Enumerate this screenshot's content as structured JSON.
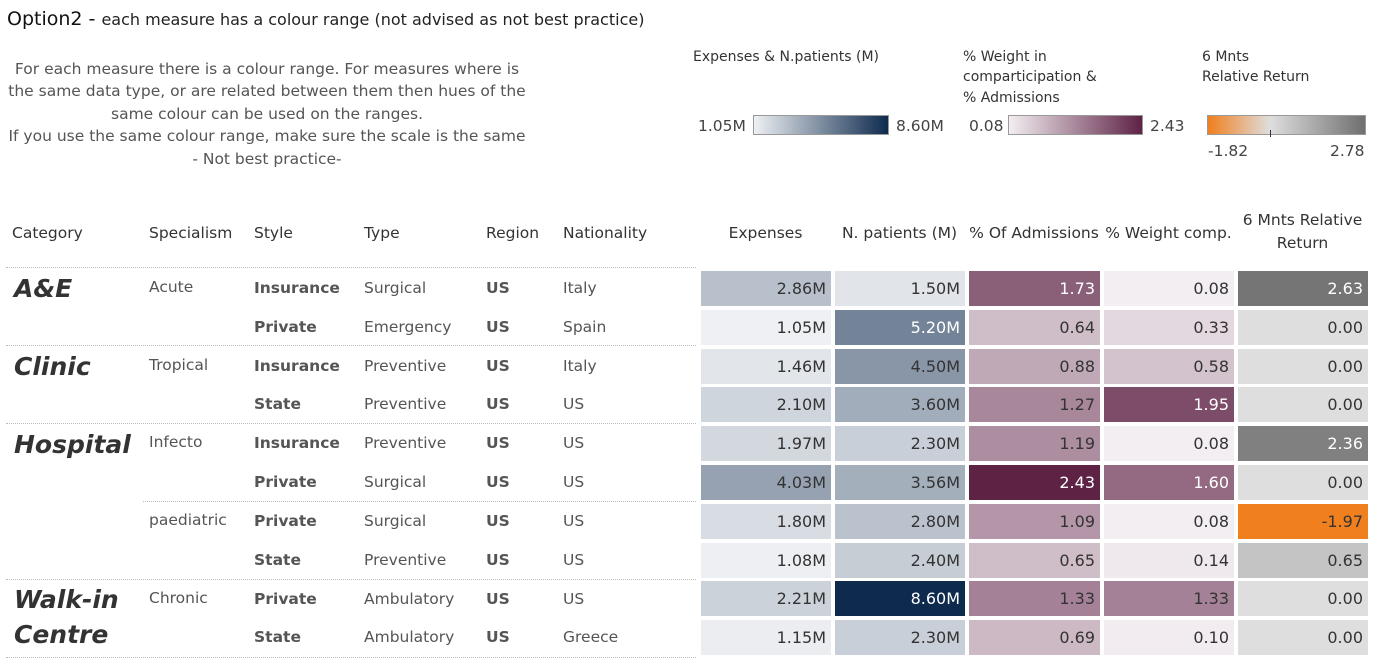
{
  "title": {
    "main": "Option2 - ",
    "sub": "each measure has a colour range (not advised as not best practice)"
  },
  "note": {
    "lines": [
      "For each measure there is a colour range. For measures where is",
      "the same data type, or are related between them then hues of the",
      "same colour can be used on the ranges.",
      "If you use the same colour range, make sure the scale is the same",
      "- Not best practice-"
    ]
  },
  "legends": {
    "blue": {
      "title": "Expenses & N.patients (M)",
      "min": "1.05M",
      "max": "8.60M",
      "color_low": "#eef0f3",
      "color_high": "#0e2b4e"
    },
    "purple": {
      "title_lines": [
        "% Weight in",
        "comparticipation &",
        "% Admissions"
      ],
      "min": "0.08",
      "max": "2.43",
      "color_low": "#f3eef1",
      "color_high": "#5e2245"
    },
    "diverging": {
      "title_lines": [
        "6  Mnts",
        "Relative Return"
      ],
      "min": "-1.82",
      "max": "2.78",
      "color_low": "#f07f1e",
      "color_mid": "#dedede",
      "color_high": "#6f6f6f",
      "marker_value": 0
    }
  },
  "table": {
    "headers": {
      "category": "Category",
      "specialism": "Specialism",
      "style": "Style",
      "type": "Type",
      "region": "Region",
      "nationality": "Nationality",
      "expenses": "Expenses",
      "patients": "N. patients (M)",
      "admissions": "% Of Admissions",
      "weight": "% Weight comp.",
      "return_line1": "6  Mnts Relative",
      "return_line2": "Return"
    },
    "categories": [
      {
        "name": "A&E"
      },
      {
        "name": "Clinic"
      },
      {
        "name": "Hospital"
      },
      {
        "name_line1": "Walk-in",
        "name_line2": "Centre"
      }
    ],
    "specialisms": [
      "Acute",
      "Tropical",
      "Infecto",
      "paediatric",
      "Chronic"
    ],
    "rows": [
      {
        "style": "Insurance",
        "type": "Surgical",
        "region": "US",
        "nationality": "Italy",
        "expenses": "2.86M",
        "patients": "1.50M",
        "admissions": "1.73",
        "weight": "0.08",
        "ret": "2.63"
      },
      {
        "style": "Private",
        "type": "Emergency",
        "region": "US",
        "nationality": "Spain",
        "expenses": "1.05M",
        "patients": "5.20M",
        "admissions": "0.64",
        "weight": "0.33",
        "ret": "0.00"
      },
      {
        "style": "Insurance",
        "type": "Preventive",
        "region": "US",
        "nationality": "Italy",
        "expenses": "1.46M",
        "patients": "4.50M",
        "admissions": "0.88",
        "weight": "0.58",
        "ret": "0.00"
      },
      {
        "style": "State",
        "type": "Preventive",
        "region": "US",
        "nationality": "US",
        "expenses": "2.10M",
        "patients": "3.60M",
        "admissions": "1.27",
        "weight": "1.95",
        "ret": "0.00"
      },
      {
        "style": "Insurance",
        "type": "Preventive",
        "region": "US",
        "nationality": "US",
        "expenses": "1.97M",
        "patients": "2.30M",
        "admissions": "1.19",
        "weight": "0.08",
        "ret": "2.36"
      },
      {
        "style": "Private",
        "type": "Surgical",
        "region": "US",
        "nationality": "US",
        "expenses": "4.03M",
        "patients": "3.56M",
        "admissions": "2.43",
        "weight": "1.60",
        "ret": "0.00"
      },
      {
        "style": "Private",
        "type": "Surgical",
        "region": "US",
        "nationality": "US",
        "expenses": "1.80M",
        "patients": "2.80M",
        "admissions": "1.09",
        "weight": "0.08",
        "ret": "-1.97"
      },
      {
        "style": "State",
        "type": "Preventive",
        "region": "US",
        "nationality": "US",
        "expenses": "1.08M",
        "patients": "2.40M",
        "admissions": "0.65",
        "weight": "0.14",
        "ret": "0.65"
      },
      {
        "style": "Private",
        "type": "Ambulatory",
        "region": "US",
        "nationality": "US",
        "expenses": "2.21M",
        "patients": "8.60M",
        "admissions": "1.33",
        "weight": "1.33",
        "ret": "0.00"
      },
      {
        "style": "State",
        "type": "Ambulatory",
        "region": "US",
        "nationality": "Greece",
        "expenses": "1.15M",
        "patients": "2.30M",
        "admissions": "0.69",
        "weight": "0.10",
        "ret": "0.00"
      }
    ]
  },
  "chart_data": {
    "type": "table",
    "title": "Option2 - each measure has a colour range (not advised as not best practice)",
    "columns": [
      "Category",
      "Specialism",
      "Style",
      "Type",
      "Region",
      "Nationality",
      "Expenses",
      "N. patients (M)",
      "% Of Admissions",
      "% Weight comp.",
      "6  Mnts Relative Return"
    ],
    "categories": [
      "A&E",
      "A&E",
      "Clinic",
      "Clinic",
      "Hospital",
      "Hospital",
      "Hospital",
      "Hospital",
      "Walk-in Centre",
      "Walk-in Centre"
    ],
    "specialism": [
      "Acute",
      "Acute",
      "Tropical",
      "Tropical",
      "Infecto",
      "Infecto",
      "paediatric",
      "paediatric",
      "Chronic",
      "Chronic"
    ],
    "series": [
      {
        "name": "Expenses",
        "unit": "M",
        "values": [
          2.86,
          1.05,
          1.46,
          2.1,
          1.97,
          4.03,
          1.8,
          1.08,
          2.21,
          1.15
        ],
        "range": [
          1.05,
          8.6
        ],
        "palette": "blue"
      },
      {
        "name": "N. patients (M)",
        "unit": "M",
        "values": [
          1.5,
          5.2,
          4.5,
          3.6,
          2.3,
          3.56,
          2.8,
          2.4,
          8.6,
          2.3
        ],
        "range": [
          1.05,
          8.6
        ],
        "palette": "blue"
      },
      {
        "name": "% Of Admissions",
        "values": [
          1.73,
          0.64,
          0.88,
          1.27,
          1.19,
          2.43,
          1.09,
          0.65,
          1.33,
          0.69
        ],
        "range": [
          0.08,
          2.43
        ],
        "palette": "purple"
      },
      {
        "name": "% Weight comp.",
        "values": [
          0.08,
          0.33,
          0.58,
          1.95,
          0.08,
          1.6,
          0.08,
          0.14,
          1.33,
          0.1
        ],
        "range": [
          0.08,
          2.43
        ],
        "palette": "purple"
      },
      {
        "name": "6  Mnts Relative Return",
        "values": [
          2.63,
          0.0,
          0.0,
          0.0,
          2.36,
          0.0,
          -1.97,
          0.65,
          0.0,
          0.0
        ],
        "range": [
          -1.82,
          2.78
        ],
        "palette": "diverging"
      }
    ]
  }
}
